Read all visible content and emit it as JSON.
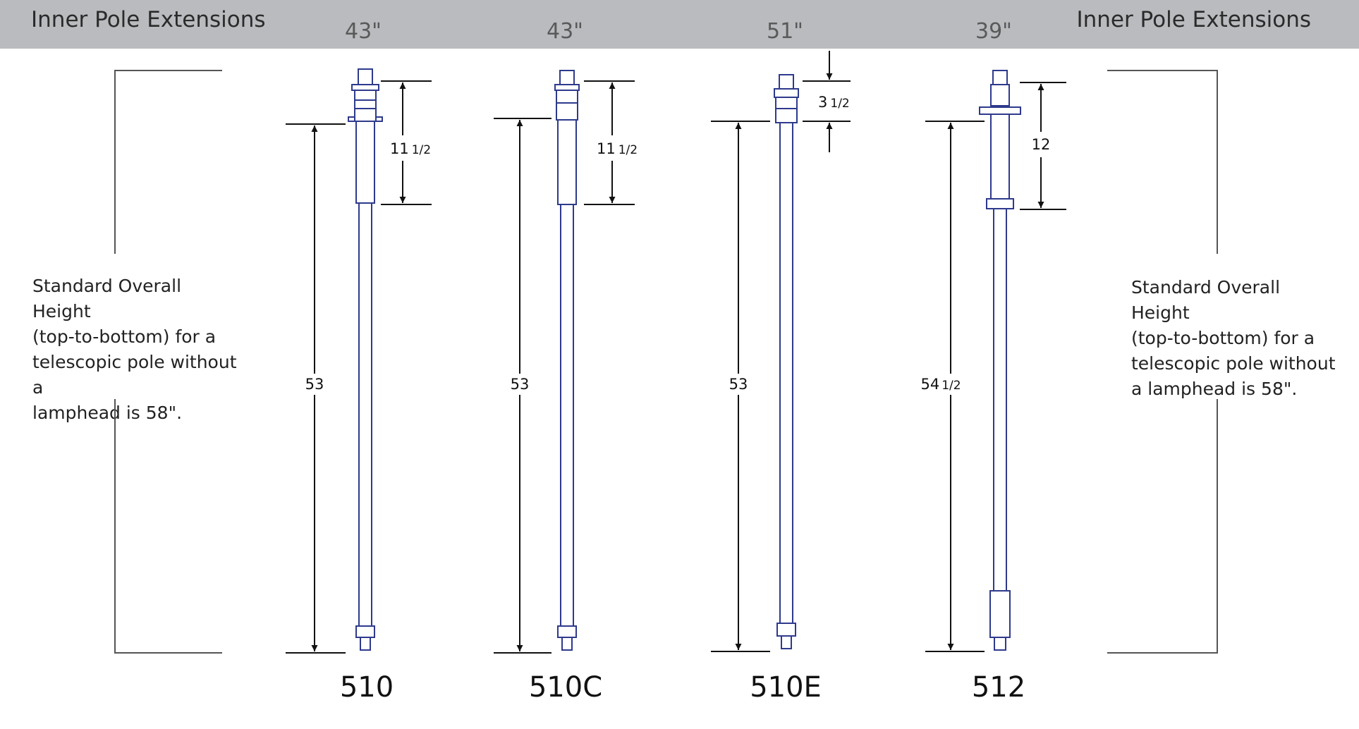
{
  "header": {
    "title_left": "Inner Pole Extensions",
    "title_right": "Inner Pole Extensions"
  },
  "side_notes": {
    "left": [
      "Standard Overall Height",
      "(top-to-bottom) for a",
      "telescopic pole without a",
      "lamphead is 58\"."
    ],
    "right": [
      "Standard Overall Height",
      "(top-to-bottom) for a",
      "telescopic pole without",
      "a lamphead is 58\"."
    ]
  },
  "poles": [
    {
      "model": "510",
      "length_label": "43\"",
      "overall_dim": "53",
      "overall_frac": "",
      "top_dim": "11",
      "top_frac": "1/2"
    },
    {
      "model": "510C",
      "length_label": "43\"",
      "overall_dim": "53",
      "overall_frac": "",
      "top_dim": "11",
      "top_frac": "1/2"
    },
    {
      "model": "510E",
      "length_label": "51\"",
      "overall_dim": "53",
      "overall_frac": "",
      "top_dim": "3",
      "top_frac": "1/2"
    },
    {
      "model": "512",
      "length_label": "39\"",
      "overall_dim": "54",
      "overall_frac": "1/2",
      "top_dim": "12",
      "top_frac": ""
    }
  ],
  "colors": {
    "header_bar": "#b9bbbe",
    "pole_stroke": "#2e3a8c",
    "dimension_line": "#111111",
    "bracket_line": "#555555"
  }
}
